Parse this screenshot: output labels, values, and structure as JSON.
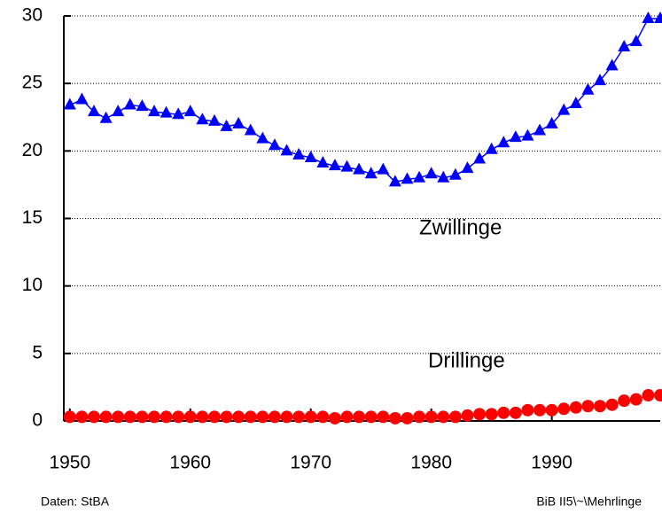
{
  "chart_data": {
    "type": "line",
    "x": [
      1950,
      1951,
      1952,
      1953,
      1954,
      1955,
      1956,
      1957,
      1958,
      1959,
      1960,
      1961,
      1962,
      1963,
      1964,
      1965,
      1966,
      1967,
      1968,
      1969,
      1970,
      1971,
      1972,
      1973,
      1974,
      1975,
      1976,
      1977,
      1978,
      1979,
      1980,
      1981,
      1982,
      1983,
      1984,
      1985,
      1986,
      1987,
      1988,
      1989,
      1990,
      1991,
      1992,
      1993,
      1994,
      1995,
      1996,
      1997,
      1998,
      1999
    ],
    "series": [
      {
        "name": "Zwillinge",
        "color": "#0000ff",
        "marker": "triangle",
        "values": [
          23.4,
          23.8,
          22.9,
          22.4,
          22.9,
          23.4,
          23.3,
          22.9,
          22.8,
          22.7,
          22.9,
          22.3,
          22.2,
          21.8,
          22.0,
          21.5,
          20.9,
          20.4,
          20.0,
          19.7,
          19.5,
          19.1,
          18.9,
          18.8,
          18.6,
          18.3,
          18.6,
          17.7,
          17.9,
          18.0,
          18.3,
          18.0,
          18.2,
          18.7,
          19.4,
          20.1,
          20.6,
          21.0,
          21.1,
          21.5,
          22.0,
          23.0,
          23.5,
          24.5,
          25.2,
          26.3,
          27.7,
          28.1,
          29.8,
          29.8
        ]
      },
      {
        "name": "Drillinge",
        "color": "#ff0000",
        "marker": "circle",
        "values": [
          0.3,
          0.3,
          0.3,
          0.3,
          0.3,
          0.3,
          0.3,
          0.3,
          0.3,
          0.3,
          0.3,
          0.3,
          0.3,
          0.3,
          0.3,
          0.3,
          0.3,
          0.3,
          0.3,
          0.3,
          0.3,
          0.3,
          0.2,
          0.3,
          0.3,
          0.3,
          0.3,
          0.2,
          0.2,
          0.3,
          0.3,
          0.3,
          0.3,
          0.4,
          0.5,
          0.5,
          0.6,
          0.6,
          0.8,
          0.8,
          0.8,
          0.9,
          1.0,
          1.1,
          1.1,
          1.2,
          1.5,
          1.6,
          1.9,
          1.9
        ]
      }
    ],
    "xlim": [
      1949.5,
      1999
    ],
    "xticks": [
      1950,
      1960,
      1970,
      1980,
      1990
    ],
    "ylim": [
      0,
      30
    ],
    "yticks": [
      0,
      5,
      10,
      15,
      20,
      25,
      30
    ],
    "grid": true,
    "source": "Daten: StBA",
    "credit": "BiB II5\\~\\Mehrlinge"
  }
}
